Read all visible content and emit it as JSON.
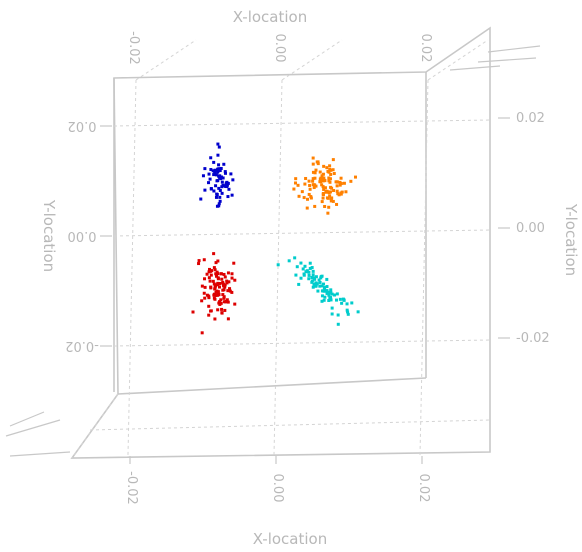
{
  "chart_data": {
    "type": "scatter",
    "view": "3d-perspective",
    "grid": true,
    "axes": {
      "x": {
        "label": "X-location",
        "range": [
          -0.03,
          0.03
        ],
        "ticks": [
          -0.02,
          0.0,
          0.02
        ],
        "tick_labels": [
          "-0.02",
          "0.00",
          "0.02"
        ]
      },
      "y": {
        "label": "Y-location",
        "range": [
          -0.03,
          0.03
        ],
        "ticks": [
          -0.02,
          0.0,
          0.02
        ],
        "tick_labels": [
          "-0.02",
          "0.00",
          "0.02"
        ]
      }
    },
    "series": [
      {
        "color": "#0000cc",
        "center": [
          -0.0085,
          0.0095
        ],
        "spread": [
          0.001,
          0.0022
        ],
        "tail": [
          0.0,
          0.004
        ],
        "n": 70
      },
      {
        "color": "#ff8000",
        "center": [
          0.006,
          0.0085
        ],
        "spread": [
          0.0018,
          0.0018
        ],
        "tail": [
          0.0015,
          0.004
        ],
        "n": 110
      },
      {
        "color": "#dd0000",
        "center": [
          -0.0088,
          -0.0095
        ],
        "spread": [
          0.001,
          0.0028
        ],
        "tail": [
          0.0,
          0.0
        ],
        "n": 110
      },
      {
        "color": "#00cccc",
        "center": [
          0.0055,
          -0.0095
        ],
        "spread": [
          0.002,
          0.002
        ],
        "tail": [
          0.0,
          0.0
        ],
        "n": 90
      }
    ]
  }
}
